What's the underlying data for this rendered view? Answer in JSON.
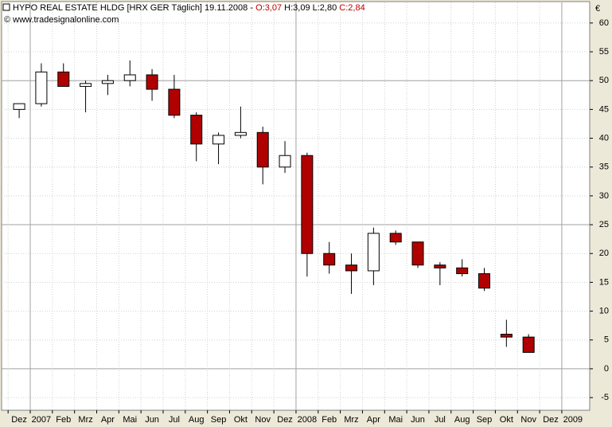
{
  "chart_data": {
    "type": "candlestick",
    "title": "HYPO REAL ESTATE HLDG [HRX GER  Täglich] 19.11.2008 -",
    "quote_open": "O:3,07",
    "quote_high_low": "H:3,09 L:2,80",
    "quote_close": "C:2,84",
    "source": "© www.tradesignalonline.com",
    "currency": "€",
    "categories": [
      "Dez",
      "2007",
      "Feb",
      "Mrz",
      "Apr",
      "Mai",
      "Jun",
      "Jul",
      "Aug",
      "Sep",
      "Okt",
      "Nov",
      "Dez",
      "2008",
      "Feb",
      "Mrz",
      "Apr",
      "Mai",
      "Jun",
      "Jul",
      "Aug",
      "Sep",
      "Okt",
      "Nov",
      "Dez",
      "2009"
    ],
    "open": [
      45,
      46,
      51.5,
      49,
      49.5,
      50,
      51,
      48.5,
      44,
      39,
      40.5,
      41,
      35,
      37,
      20,
      18,
      17,
      23.5,
      22,
      18,
      17.5,
      16.5,
      6,
      5.5,
      null,
      null
    ],
    "high": [
      46,
      53,
      53,
      50,
      51,
      53.5,
      52,
      51,
      44.5,
      41,
      45.5,
      42,
      39.5,
      37.5,
      22,
      20,
      24.5,
      24,
      22,
      18.5,
      19,
      17.5,
      8.5,
      6,
      null,
      null
    ],
    "low": [
      43.5,
      45.5,
      49,
      44.5,
      47.5,
      49,
      46.5,
      43.5,
      36,
      35.5,
      40,
      32,
      34,
      16,
      16.5,
      13,
      14.5,
      21.5,
      17.5,
      14.5,
      16,
      13.5,
      3.8,
      2.8,
      null,
      null
    ],
    "close": [
      46,
      51.5,
      49,
      49.5,
      50,
      51,
      48.5,
      44,
      39,
      40.5,
      41,
      35,
      37,
      20,
      18,
      17,
      23.5,
      22,
      18,
      17.5,
      16.5,
      14,
      5.5,
      2.84,
      null,
      null
    ],
    "up_color": "#ffffff",
    "down_color": "#b00000",
    "ylim": [
      -7.2,
      61.5
    ],
    "yticks": [
      -5,
      0,
      5,
      10,
      15,
      20,
      25,
      30,
      35,
      40,
      45,
      50,
      55,
      60
    ],
    "grid": true
  }
}
